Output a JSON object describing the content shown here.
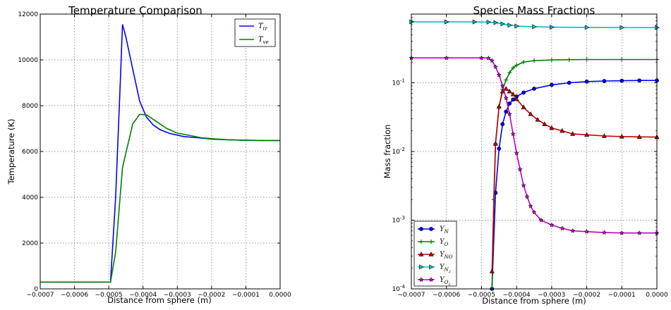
{
  "chart_data": [
    {
      "type": "line",
      "title": "Temperature Comparison",
      "xlabel": "Distance from sphere (m)",
      "ylabel": "Temperature (K)",
      "xlim": [
        -0.0007,
        0.0
      ],
      "ylim": [
        0,
        12000
      ],
      "grid": true,
      "legend_position": "top-right",
      "x_ticks": [
        "−0.0007",
        "−0.0006",
        "−0.0005",
        "−0.0004",
        "−0.0003",
        "−0.0002",
        "−0.0001",
        "0.0000"
      ],
      "y_ticks": [
        "0",
        "2000",
        "4000",
        "6000",
        "8000",
        "10000",
        "12000"
      ],
      "series": [
        {
          "name": "T_tr",
          "color": "#0000ff",
          "x": [
            -0.0007,
            -0.0006,
            -0.000495,
            -0.00048,
            -0.000465,
            -0.00046,
            -0.00045,
            -0.00043,
            -0.00041,
            -0.00039,
            -0.00037,
            -0.00035,
            -0.00032,
            -0.00028,
            -0.00024,
            -0.0002,
            -0.00015,
            -0.0001,
            -5e-05,
            0.0
          ],
          "y": [
            300,
            300,
            300,
            4000,
            9500,
            11550,
            11000,
            9600,
            8200,
            7500,
            7150,
            6950,
            6780,
            6650,
            6600,
            6540,
            6510,
            6490,
            6480,
            6480
          ]
        },
        {
          "name": "T_ve",
          "color": "#008000",
          "x": [
            -0.0007,
            -0.0006,
            -0.000495,
            -0.00048,
            -0.00046,
            -0.00043,
            -0.00041,
            -0.00039,
            -0.00036,
            -0.00033,
            -0.0003,
            -0.00027,
            -0.00023,
            -0.0002,
            -0.00015,
            -0.0001,
            -5e-05,
            0.0
          ],
          "y": [
            300,
            300,
            300,
            1600,
            5300,
            7200,
            7620,
            7600,
            7300,
            7000,
            6800,
            6720,
            6600,
            6560,
            6510,
            6490,
            6480,
            6480
          ]
        }
      ]
    },
    {
      "type": "line",
      "title": "Species Mass Fractions",
      "xlabel": "Distance from sphere (m)",
      "ylabel": "Mass fraction",
      "xlim": [
        -0.0007,
        0.0
      ],
      "ylim": [
        0.0001,
        1.0
      ],
      "yscale": "log",
      "grid": true,
      "legend_position": "bottom-left",
      "x_ticks": [
        "−0.0007",
        "−0.0006",
        "−0.0005",
        "−0.0004",
        "−0.0003",
        "−0.0002",
        "−0.0001",
        "0.0000"
      ],
      "y_ticks": [
        {
          "base": "10",
          "exp": "-4"
        },
        {
          "base": "10",
          "exp": "-3"
        },
        {
          "base": "10",
          "exp": "-2"
        },
        {
          "base": "10",
          "exp": "-1"
        }
      ],
      "series": [
        {
          "name": "Y_N",
          "color": "#0000ff",
          "marker": "circle",
          "x": [
            -0.00047,
            -0.00046,
            -0.00045,
            -0.00044,
            -0.00043,
            -0.00042,
            -0.00041,
            -0.0004,
            -0.00038,
            -0.00035,
            -0.0003,
            -0.00025,
            -0.0002,
            -0.00015,
            -0.0001,
            -5e-05,
            0.0
          ],
          "y": [
            0.0001,
            0.0025,
            0.011,
            0.025,
            0.038,
            0.05,
            0.057,
            0.063,
            0.072,
            0.082,
            0.093,
            0.1,
            0.104,
            0.106,
            0.107,
            0.108,
            0.108
          ]
        },
        {
          "name": "Y_O",
          "color": "#008000",
          "marker": "plus",
          "x": [
            -0.00047,
            -0.000465,
            -0.00046,
            -0.00045,
            -0.00044,
            -0.00043,
            -0.00042,
            -0.00041,
            -0.0004,
            -0.00038,
            -0.00035,
            -0.0003,
            -0.00025,
            -0.0002,
            -0.0001,
            0.0
          ],
          "y": [
            0.0001,
            0.002,
            0.013,
            0.045,
            0.08,
            0.11,
            0.14,
            0.165,
            0.18,
            0.2,
            0.21,
            0.215,
            0.217,
            0.218,
            0.218,
            0.218
          ]
        },
        {
          "name": "Y_NO",
          "color": "#c00000",
          "marker": "triangle",
          "x": [
            -0.00047,
            -0.00046,
            -0.00045,
            -0.00044,
            -0.00043,
            -0.00042,
            -0.00041,
            -0.0004,
            -0.00038,
            -0.00036,
            -0.00034,
            -0.00032,
            -0.0003,
            -0.00027,
            -0.00024,
            -0.0002,
            -0.00015,
            -0.0001,
            -5e-05,
            0.0
          ],
          "y": [
            0.00018,
            0.013,
            0.045,
            0.075,
            0.082,
            0.075,
            0.068,
            0.058,
            0.044,
            0.035,
            0.029,
            0.025,
            0.022,
            0.02,
            0.018,
            0.0175,
            0.0168,
            0.0165,
            0.0163,
            0.0162
          ]
        },
        {
          "name": "Y_N2",
          "color": "#00bfbf",
          "marker": "triangle-right",
          "x": [
            -0.0007,
            -0.0006,
            -0.00052,
            -0.00048,
            -0.00046,
            -0.00044,
            -0.00042,
            -0.0004,
            -0.00035,
            -0.0003,
            -0.0002,
            -0.0001,
            0.0
          ],
          "y": [
            0.77,
            0.77,
            0.77,
            0.765,
            0.75,
            0.72,
            0.69,
            0.67,
            0.655,
            0.645,
            0.64,
            0.637,
            0.636
          ]
        },
        {
          "name": "Y_O2",
          "color": "#bf00bf",
          "marker": "star",
          "x": [
            -0.0007,
            -0.0006,
            -0.0005,
            -0.00048,
            -0.00047,
            -0.00046,
            -0.00045,
            -0.00044,
            -0.00043,
            -0.00042,
            -0.00041,
            -0.0004,
            -0.00039,
            -0.00038,
            -0.00037,
            -0.00036,
            -0.00035,
            -0.00033,
            -0.0003,
            -0.00027,
            -0.00024,
            -0.0002,
            -0.00015,
            -0.0001,
            -5e-05,
            0.0
          ],
          "y": [
            0.23,
            0.23,
            0.23,
            0.228,
            0.21,
            0.17,
            0.13,
            0.09,
            0.06,
            0.035,
            0.018,
            0.0095,
            0.0055,
            0.0032,
            0.0022,
            0.0016,
            0.0013,
            0.001,
            0.00085,
            0.00076,
            0.0007,
            0.00068,
            0.00066,
            0.00065,
            0.00065,
            0.00065
          ]
        }
      ]
    }
  ]
}
